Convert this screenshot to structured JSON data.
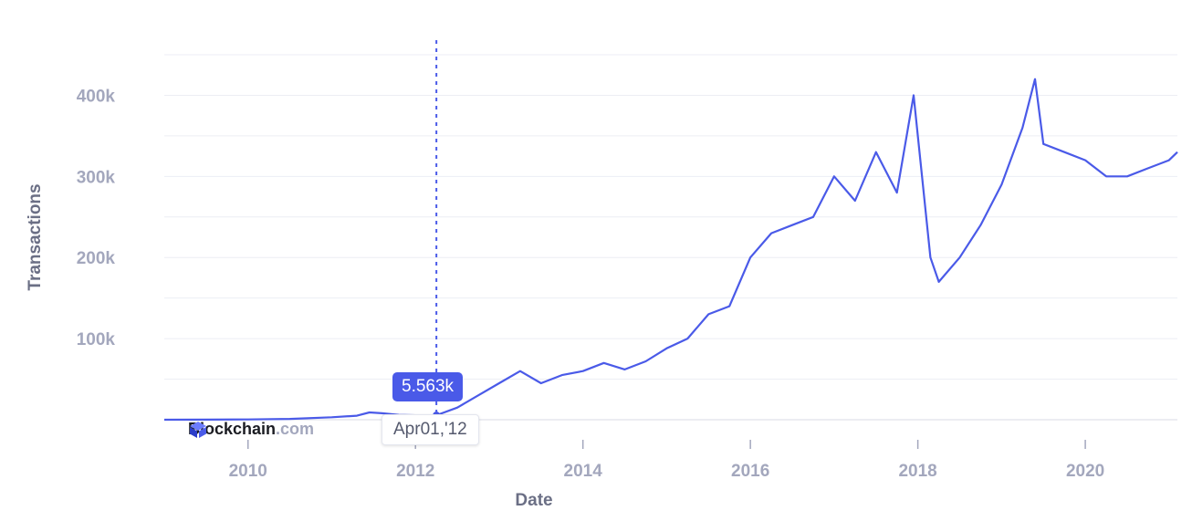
{
  "chart_data": {
    "type": "line",
    "xlabel": "Date",
    "ylabel": "Transactions",
    "x_ticks": [
      "2010",
      "2012",
      "2014",
      "2016",
      "2018",
      "2020"
    ],
    "y_ticks": [
      "100k",
      "200k",
      "300k",
      "400k"
    ],
    "xlim": [
      2009.0,
      2021.1
    ],
    "ylim": [
      0,
      450000
    ],
    "grid": true,
    "colors": {
      "line": "#4a5ae8",
      "grid": "#eceef4"
    },
    "series": [
      {
        "x": [
          2009.0,
          2009.5,
          2010.0,
          2010.5,
          2011.0,
          2011.3,
          2011.45,
          2011.6,
          2011.8,
          2012.0,
          2012.25,
          2012.5,
          2012.75,
          2013.0,
          2013.25,
          2013.5,
          2013.75,
          2014.0,
          2014.25,
          2014.5,
          2014.75,
          2015.0,
          2015.25,
          2015.5,
          2015.75,
          2016.0,
          2016.25,
          2016.5,
          2016.75,
          2017.0,
          2017.25,
          2017.5,
          2017.75,
          2017.95,
          2018.05,
          2018.15,
          2018.25,
          2018.5,
          2018.75,
          2019.0,
          2019.25,
          2019.4,
          2019.5,
          2019.75,
          2020.0,
          2020.25,
          2020.5,
          2020.75,
          2021.0,
          2021.1
        ],
        "y": [
          0,
          100,
          300,
          1000,
          3000,
          5000,
          9000,
          8000,
          6000,
          5500,
          5563,
          15000,
          30000,
          45000,
          60000,
          45000,
          55000,
          60000,
          70000,
          62000,
          72000,
          88000,
          100000,
          130000,
          140000,
          200000,
          230000,
          240000,
          250000,
          300000,
          270000,
          330000,
          280000,
          400000,
          300000,
          200000,
          170000,
          200000,
          240000,
          290000,
          360000,
          420000,
          340000,
          330000,
          320000,
          300000,
          300000,
          310000,
          320000,
          330000
        ]
      }
    ],
    "tooltip": {
      "value": "5.563k",
      "date": "Apr01,'12",
      "x": 2012.25
    }
  },
  "watermark": {
    "brand": "Blockchain",
    "suffix": ".com"
  },
  "icons": {
    "logo": "blockchain-logo-icon"
  }
}
